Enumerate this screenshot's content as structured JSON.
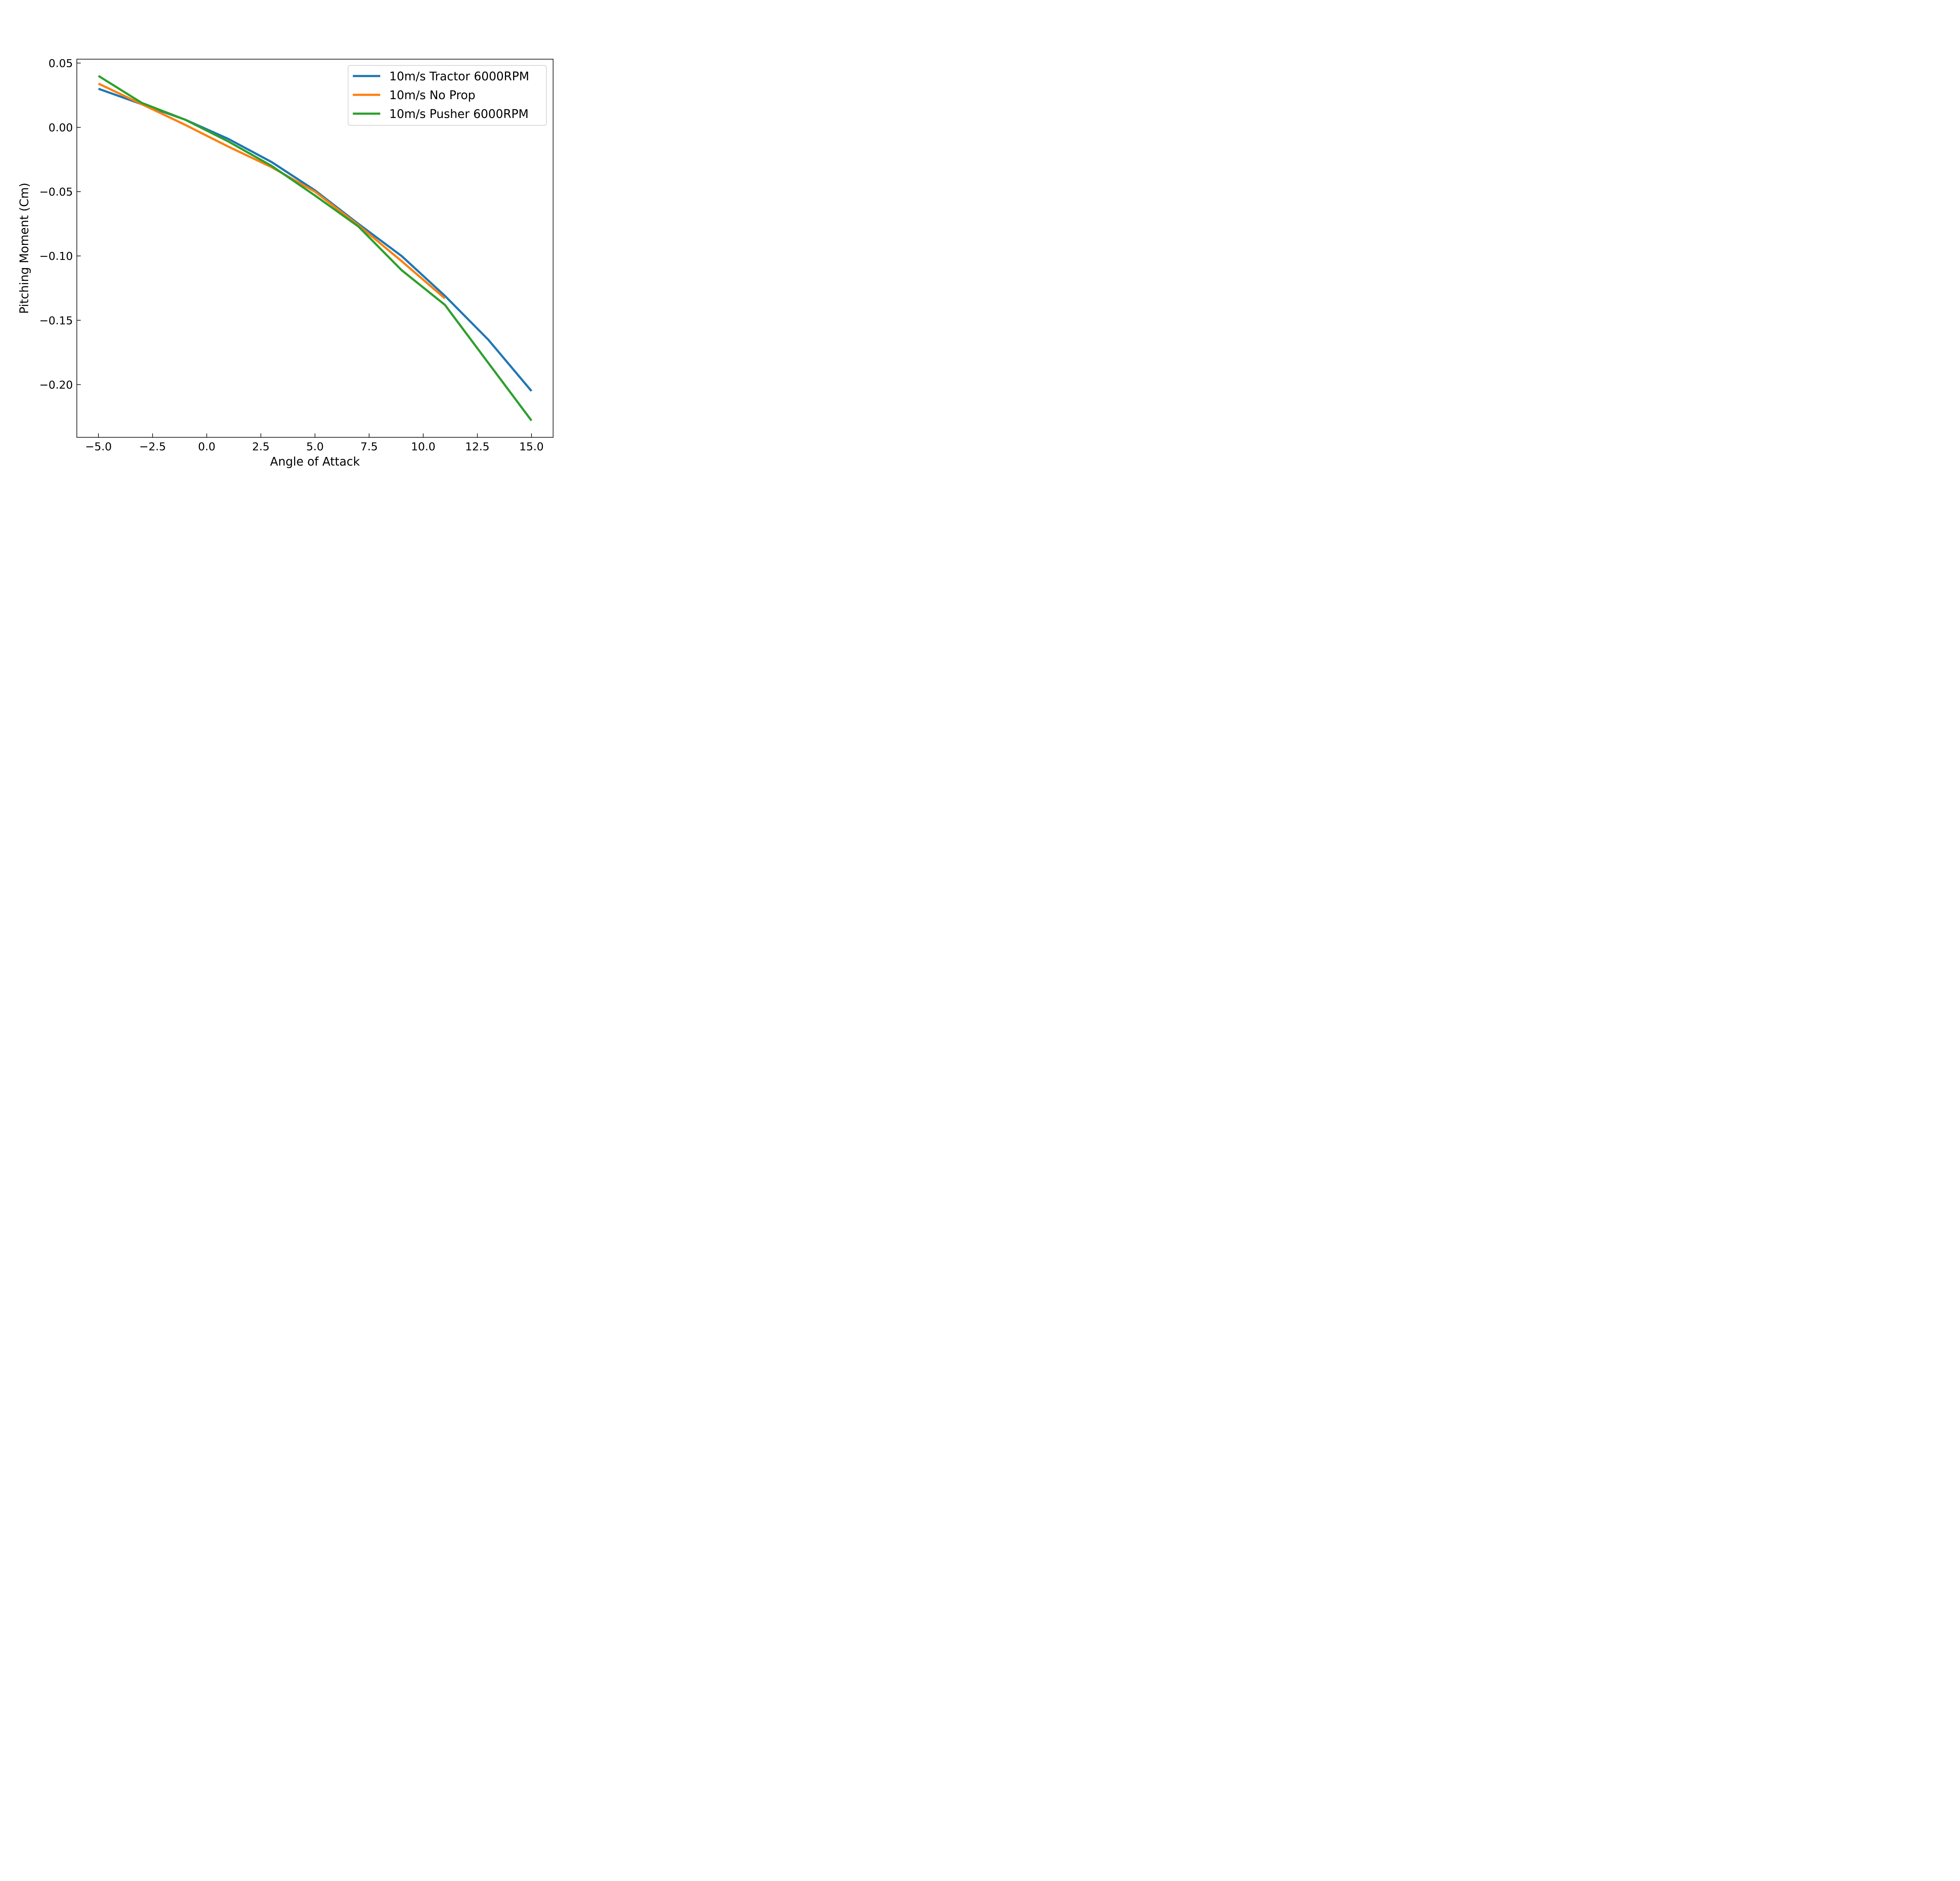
{
  "chart_data": {
    "type": "line",
    "title": "",
    "xlabel": "Angle of Attack",
    "ylabel": "Pitching Moment (Cm)",
    "xlim": [
      -6,
      16
    ],
    "ylim": [
      -0.241,
      0.053
    ],
    "xticks": [
      -5.0,
      -2.5,
      0.0,
      2.5,
      5.0,
      7.5,
      10.0,
      12.5,
      15.0
    ],
    "xtick_labels": [
      "−5.0",
      "−2.5",
      "0.0",
      "2.5",
      "5.0",
      "7.5",
      "10.0",
      "12.5",
      "15.0"
    ],
    "yticks": [
      0.05,
      0.0,
      -0.05,
      -0.1,
      -0.15,
      -0.2
    ],
    "ytick_labels": [
      "0.05",
      "0.00",
      "−0.05",
      "−0.10",
      "−0.15",
      "−0.20"
    ],
    "grid": false,
    "legend_position": "top-right",
    "series": [
      {
        "name": "10m/s Tractor 6000RPM",
        "color": "#1f77b4",
        "x": [
          -5,
          -3,
          -1,
          1,
          3,
          5,
          7,
          9,
          11,
          13,
          15
        ],
        "y": [
          0.03,
          0.018,
          0.006,
          -0.009,
          -0.027,
          -0.049,
          -0.075,
          -0.1,
          -0.131,
          -0.165,
          -0.205
        ]
      },
      {
        "name": "10m/s No Prop",
        "color": "#ff7f0e",
        "x": [
          -5,
          -3,
          -1,
          1,
          3,
          5,
          7,
          9,
          11
        ],
        "y": [
          0.034,
          0.018,
          0.002,
          -0.015,
          -0.031,
          -0.05,
          -0.076,
          -0.104,
          -0.133
        ]
      },
      {
        "name": "10m/s Pusher 6000RPM",
        "color": "#2ca02c",
        "x": [
          -5,
          -3,
          -1,
          1,
          3,
          5,
          7,
          9,
          11,
          13,
          15
        ],
        "y": [
          0.04,
          0.019,
          0.006,
          -0.011,
          -0.03,
          -0.053,
          -0.077,
          -0.111,
          -0.138,
          -0.183,
          -0.228
        ]
      }
    ]
  }
}
